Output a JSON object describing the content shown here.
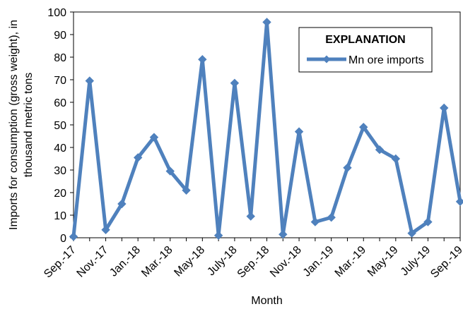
{
  "chart_data": {
    "type": "line",
    "title": "",
    "xlabel": "Month",
    "ylabel_line1": "Imports for consumption (gross weight), in",
    "ylabel_line2": "thousand metric tons",
    "ylim": [
      0,
      100
    ],
    "yticks": [
      0,
      10,
      20,
      30,
      40,
      50,
      60,
      70,
      80,
      90,
      100
    ],
    "x": [
      "Sep.-17",
      "Oct.-17",
      "Nov.-17",
      "Dec.-17",
      "Jan.-18",
      "Feb.-18",
      "Mar.-18",
      "Apr.-18",
      "May-18",
      "June-18",
      "July-18",
      "Aug.-18",
      "Sep.-18",
      "Oct.-18",
      "Nov.-18",
      "Dec.-18",
      "Jan.-19",
      "Feb.-19",
      "Mar.-19",
      "Apr.-19",
      "May-19",
      "June-19",
      "July-19",
      "Aug.-19",
      "Sep.-19"
    ],
    "xtick_labels": [
      "Sep.-17",
      "Nov.-17",
      "Jan.-18",
      "Mar.-18",
      "May-18",
      "July-18",
      "Sep.-18",
      "Nov.-18",
      "Jan.-19",
      "Mar.-19",
      "May-19",
      "July-19",
      "Sep.-19"
    ],
    "legend_title": "EXPLANATION",
    "legend_position": "top-right",
    "grid": false,
    "series": [
      {
        "name": "Mn ore imports",
        "color": "#4F81BD",
        "marker": "diamond",
        "values": [
          0.5,
          69.5,
          3.5,
          15,
          35.5,
          44.5,
          29.5,
          21,
          79,
          1,
          68.5,
          9.5,
          95.5,
          1.5,
          47,
          7,
          9,
          31,
          49,
          39,
          35,
          2,
          7,
          57.5,
          16
        ]
      }
    ]
  }
}
